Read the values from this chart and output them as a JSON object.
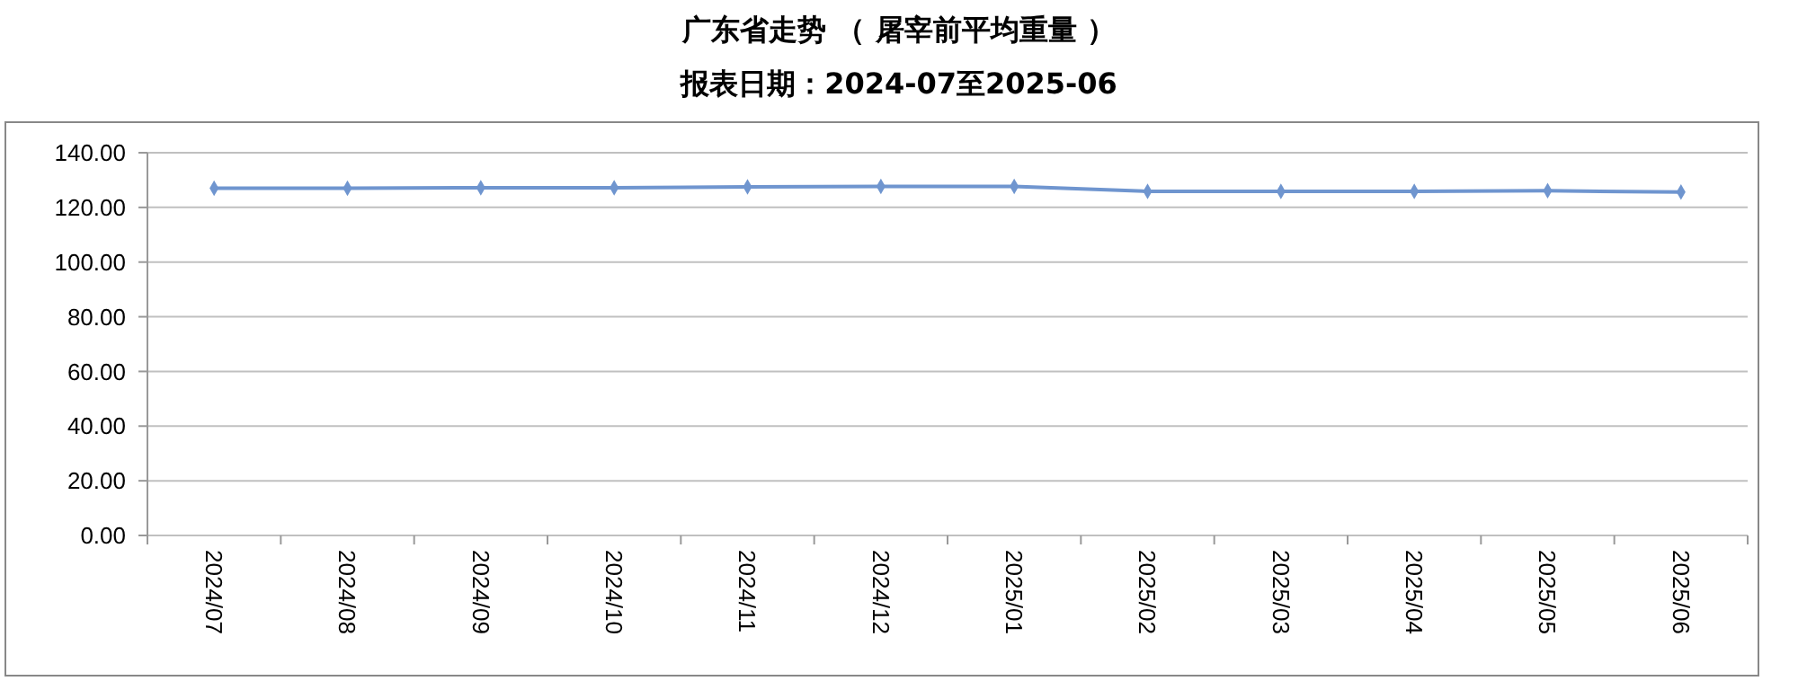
{
  "chart_data": {
    "type": "line",
    "title": "广东省走势 （ 屠宰前平均重量 ）",
    "subtitle": "报表日期：2024-07至2025-06",
    "categories": [
      "2024/07",
      "2024/08",
      "2024/09",
      "2024/10",
      "2024/11",
      "2024/12",
      "2025/01",
      "2025/02",
      "2025/03",
      "2025/04",
      "2025/05",
      "2025/06"
    ],
    "series": [
      {
        "color": "#6f95cf",
        "values": [
          127.0,
          127.0,
          127.2,
          127.2,
          127.5,
          127.7,
          127.7,
          125.9,
          125.9,
          125.9,
          126.1,
          125.6
        ]
      }
    ],
    "ylim": [
      0,
      140
    ],
    "yticks": [
      {
        "value": 0,
        "label": "0.00"
      },
      {
        "value": 20,
        "label": "20.00"
      },
      {
        "value": 40,
        "label": "40.00"
      },
      {
        "value": 60,
        "label": "60.00"
      },
      {
        "value": 80,
        "label": "80.00"
      },
      {
        "value": 100,
        "label": "100.00"
      },
      {
        "value": 120,
        "label": "120.00"
      },
      {
        "value": 140,
        "label": "140.00"
      }
    ],
    "grid": "y",
    "marker": "diamond"
  }
}
